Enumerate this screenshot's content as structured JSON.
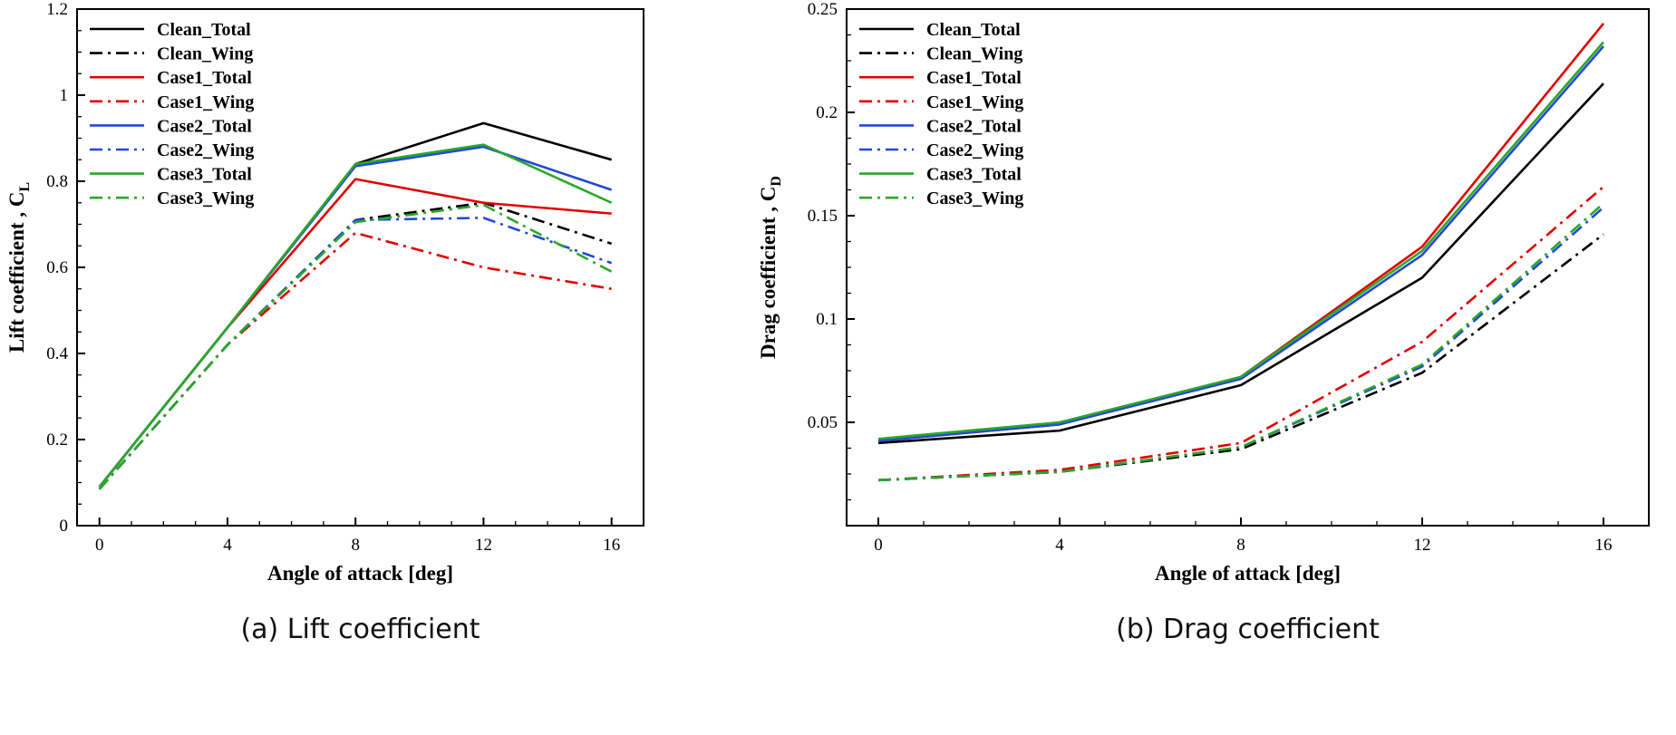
{
  "page": {
    "background": "#ffffff"
  },
  "chart_data": [
    {
      "type": "line",
      "caption": "(a) Lift coefficient",
      "xlabel": "Angle of attack [deg]",
      "ylabel": "Lift coefficient , C",
      "ylabel_sub": "L",
      "x": [
        0,
        4,
        8,
        12,
        16
      ],
      "xlim": [
        -0.7,
        17
      ],
      "ylim": [
        0,
        1.2
      ],
      "xticks": [
        0,
        4,
        8,
        12,
        16
      ],
      "xtick_labels": [
        "0",
        "4",
        "8",
        "12",
        "16"
      ],
      "yticks": [
        0,
        0.2,
        0.4,
        0.6,
        0.8,
        1,
        1.2
      ],
      "ytick_labels": [
        "0",
        "0.2",
        "0.4",
        "0.6",
        "0.8",
        "1",
        "1.2"
      ],
      "xtick_minor_step": 1,
      "ytick_minor_step": 0.05,
      "grid": false,
      "legend_position": "top-left",
      "series": [
        {
          "name": "Clean_Total",
          "color": "#000000",
          "style": "solid",
          "values": [
            0.09,
            0.46,
            0.84,
            0.935,
            0.85
          ]
        },
        {
          "name": "Clean_Wing",
          "color": "#000000",
          "style": "dashdot",
          "values": [
            0.085,
            0.42,
            0.71,
            0.75,
            0.655
          ]
        },
        {
          "name": "Case1_Total",
          "color": "#e00000",
          "style": "solid",
          "values": [
            0.09,
            0.46,
            0.805,
            0.75,
            0.725
          ]
        },
        {
          "name": "Case1_Wing",
          "color": "#e00000",
          "style": "dashdot",
          "values": [
            0.085,
            0.42,
            0.68,
            0.6,
            0.55
          ]
        },
        {
          "name": "Case2_Total",
          "color": "#2547d8",
          "style": "solid",
          "values": [
            0.09,
            0.46,
            0.835,
            0.88,
            0.78
          ]
        },
        {
          "name": "Case2_Wing",
          "color": "#2547d8",
          "style": "dashdot",
          "values": [
            0.085,
            0.42,
            0.71,
            0.715,
            0.61
          ]
        },
        {
          "name": "Case3_Total",
          "color": "#28a828",
          "style": "solid",
          "values": [
            0.09,
            0.46,
            0.84,
            0.885,
            0.75
          ]
        },
        {
          "name": "Case3_Wing",
          "color": "#28a828",
          "style": "dashdot",
          "values": [
            0.085,
            0.42,
            0.705,
            0.745,
            0.59
          ]
        }
      ]
    },
    {
      "type": "line",
      "caption": "(b) Drag coefficient",
      "xlabel": "Angle of attack [deg]",
      "ylabel": "Drag coefficient , C",
      "ylabel_sub": "D",
      "x": [
        0,
        4,
        8,
        12,
        16
      ],
      "xlim": [
        -0.7,
        17
      ],
      "ylim": [
        0,
        0.25
      ],
      "xticks": [
        0,
        4,
        8,
        12,
        16
      ],
      "xtick_labels": [
        "0",
        "4",
        "8",
        "12",
        "16"
      ],
      "yticks": [
        0.05,
        0.1,
        0.15,
        0.2,
        0.25
      ],
      "ytick_labels": [
        "0.05",
        "0.1",
        "0.15",
        "0.2",
        "0.25"
      ],
      "xtick_minor_step": 1,
      "ytick_minor_step": 0.0125,
      "grid": false,
      "legend_position": "top-left",
      "series": [
        {
          "name": "Clean_Total",
          "color": "#000000",
          "style": "solid",
          "values": [
            0.04,
            0.046,
            0.068,
            0.12,
            0.214
          ]
        },
        {
          "name": "Clean_Wing",
          "color": "#000000",
          "style": "dashdot",
          "values": [
            0.022,
            0.026,
            0.037,
            0.074,
            0.141
          ]
        },
        {
          "name": "Case1_Total",
          "color": "#e00000",
          "style": "solid",
          "values": [
            0.041,
            0.049,
            0.072,
            0.135,
            0.243
          ]
        },
        {
          "name": "Case1_Wing",
          "color": "#e00000",
          "style": "dashdot",
          "values": [
            0.022,
            0.027,
            0.04,
            0.089,
            0.164
          ]
        },
        {
          "name": "Case2_Total",
          "color": "#2547d8",
          "style": "solid",
          "values": [
            0.041,
            0.049,
            0.071,
            0.131,
            0.232
          ]
        },
        {
          "name": "Case2_Wing",
          "color": "#2547d8",
          "style": "dashdot",
          "values": [
            0.022,
            0.026,
            0.038,
            0.077,
            0.154
          ]
        },
        {
          "name": "Case3_Total",
          "color": "#28a828",
          "style": "solid",
          "values": [
            0.042,
            0.05,
            0.072,
            0.133,
            0.234
          ]
        },
        {
          "name": "Case3_Wing",
          "color": "#28a828",
          "style": "dashdot",
          "values": [
            0.022,
            0.026,
            0.038,
            0.078,
            0.156
          ]
        }
      ]
    }
  ]
}
